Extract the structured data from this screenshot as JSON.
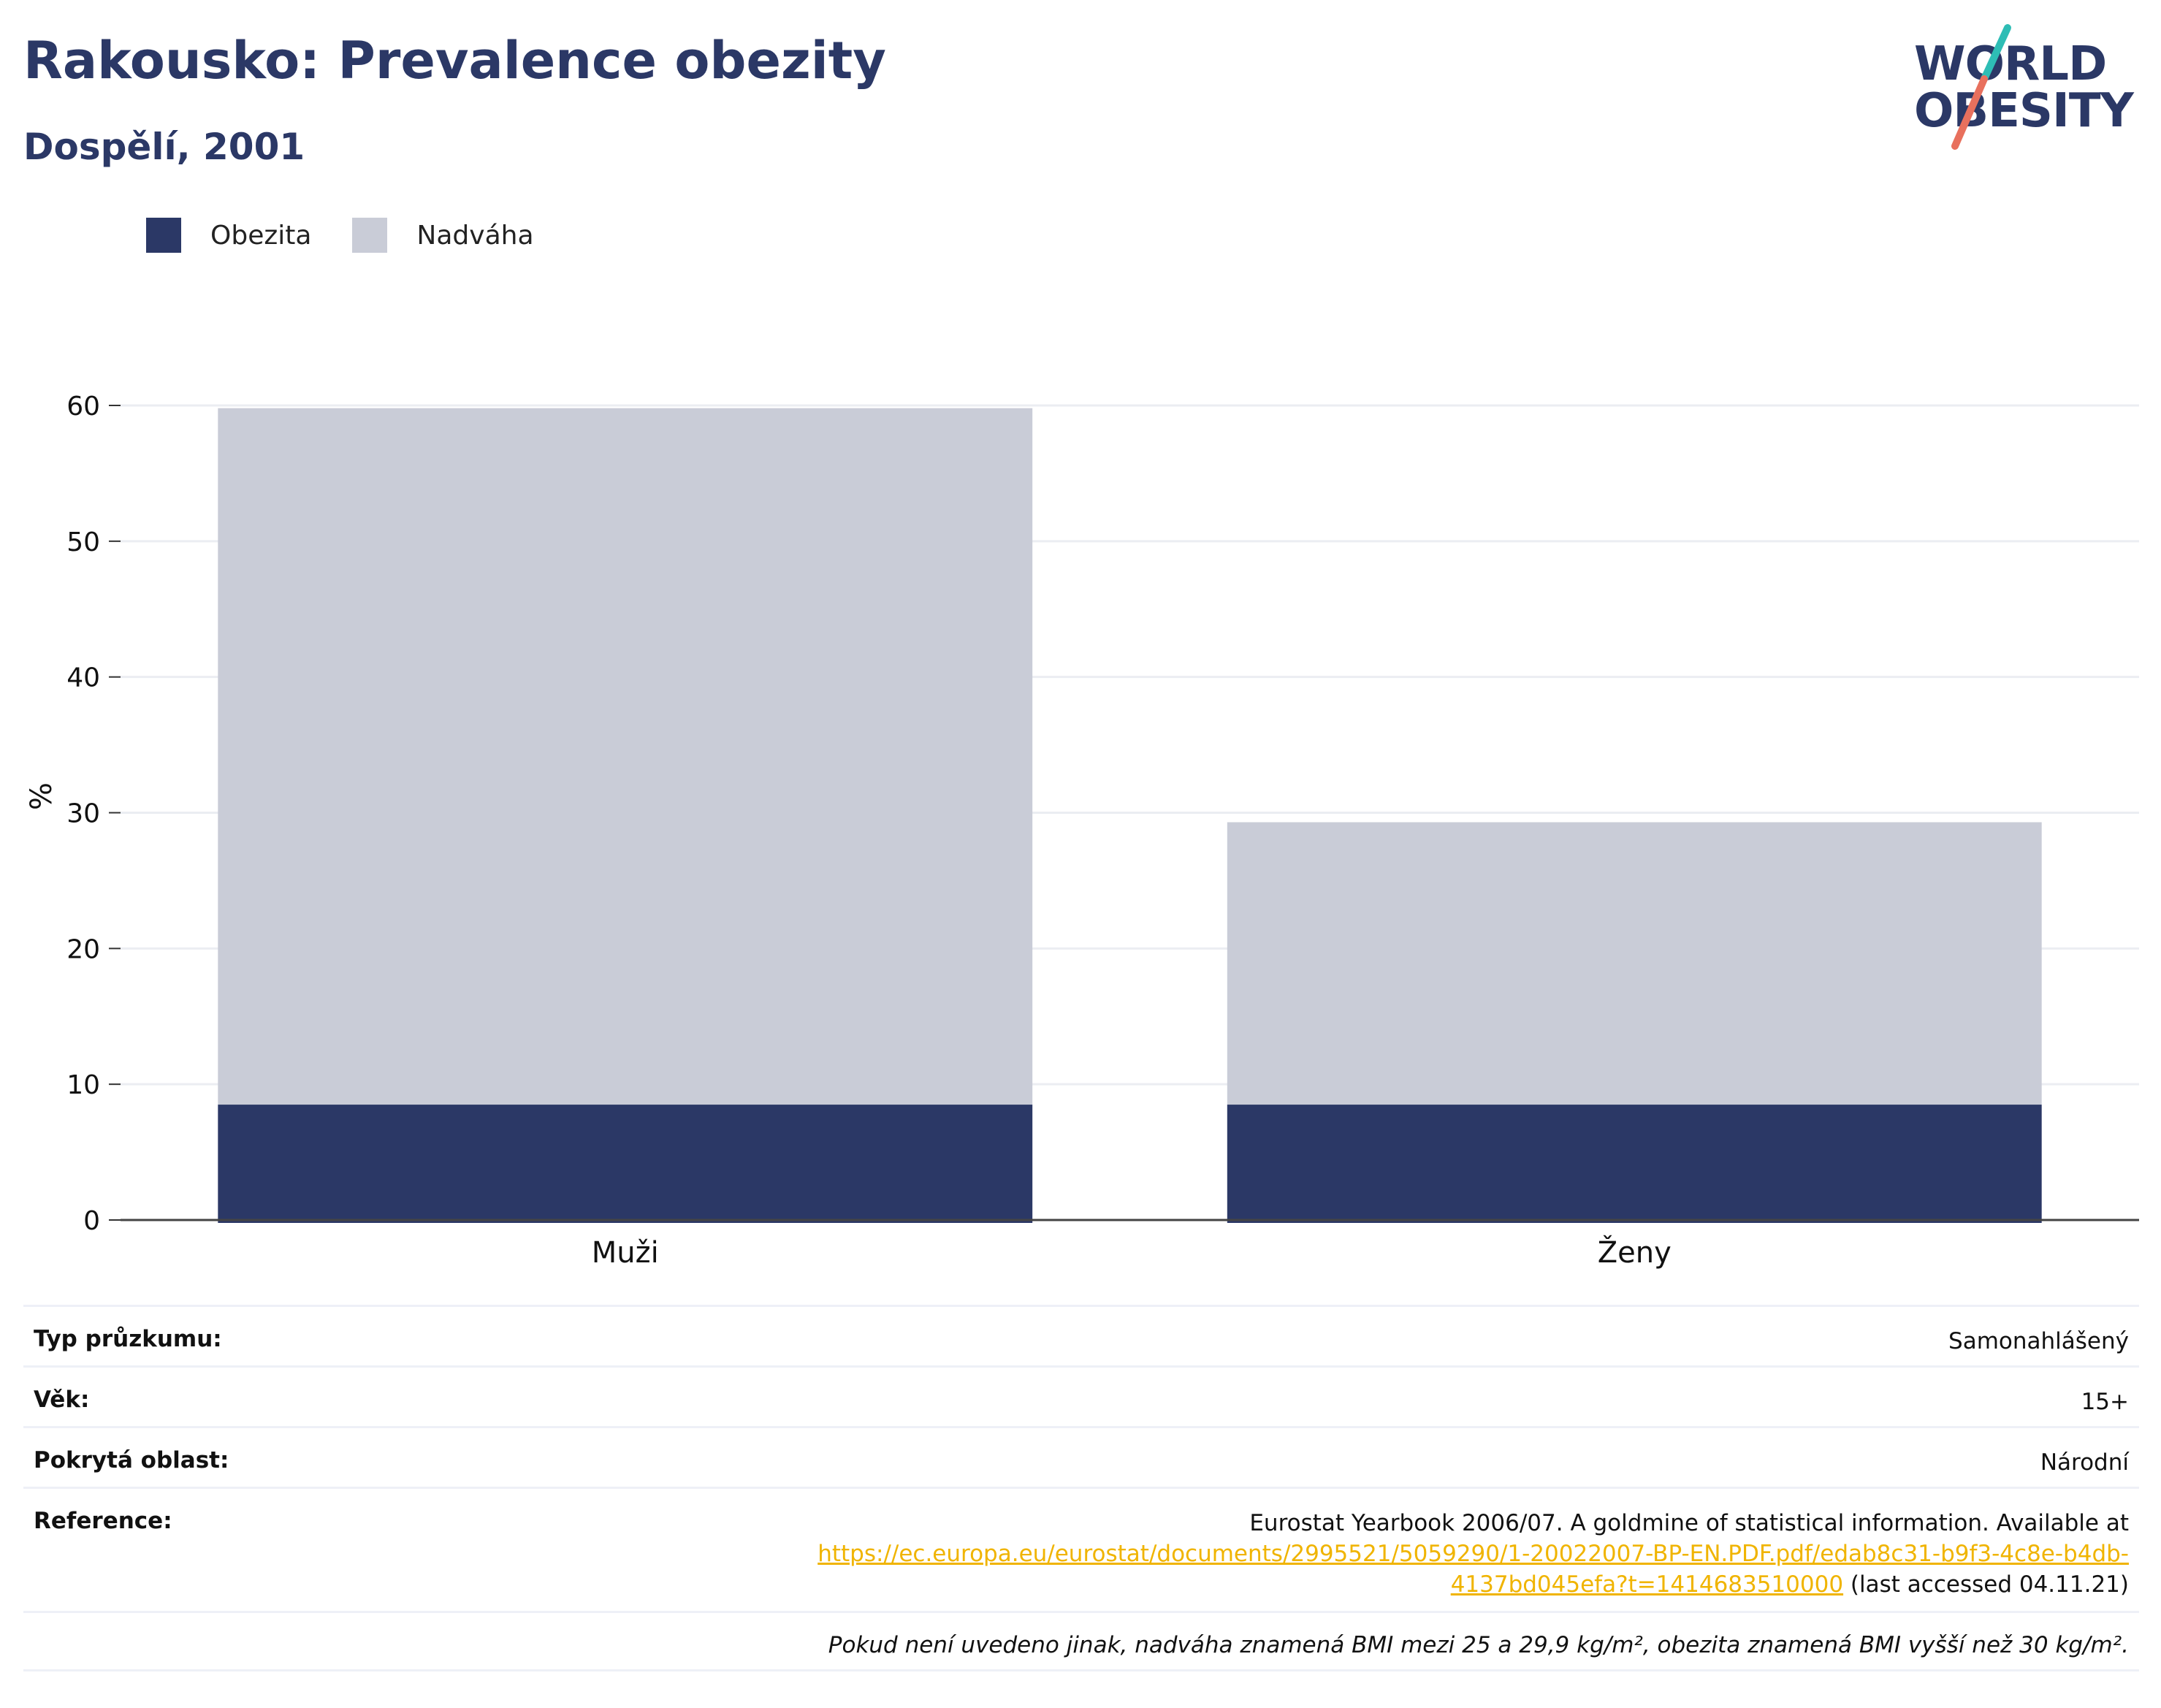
{
  "header": {
    "title": "Rakousko: Prevalence obezity",
    "subtitle": "Dospělí, 2001",
    "logo_line1": "WORLD",
    "logo_line2": "OBESITY"
  },
  "colors": {
    "obesity": "#2b3866",
    "overweight": "#c9ccd7",
    "title": "#2b3866",
    "link": "#f0b400",
    "grid": "#ebedf2",
    "logo_slash_top": "#2ebdb5",
    "logo_slash_bottom": "#e8705d"
  },
  "chart_data": {
    "type": "bar",
    "stacked": true,
    "categories": [
      "Muži",
      "Ženy"
    ],
    "series": [
      {
        "name": "Obezita",
        "values": [
          8.5,
          8.5
        ]
      },
      {
        "name": "Nadváha",
        "values": [
          51.3,
          20.8
        ]
      }
    ],
    "title": "Rakousko: Prevalence obezity",
    "subtitle": "Dospělí, 2001",
    "ylabel": "%",
    "ylim": [
      0,
      60
    ],
    "yticks": [
      0,
      10,
      20,
      30,
      40,
      50,
      60
    ],
    "grid": true,
    "legend_position": "top-left"
  },
  "info": {
    "survey_type_label": "Typ průzkumu:",
    "survey_type_value": "Samonahlášený",
    "age_label": "Věk:",
    "age_value": "15+",
    "area_label": "Pokrytá oblast:",
    "area_value": "Národní",
    "reference_label": "Reference:",
    "reference_text": "Eurostat Yearbook 2006/07. A goldmine of statistical information. Available at",
    "reference_link_line1": "https://ec.europa.eu/eurostat/documents/2995521/5059290/1-20022007-BP-EN.PDF.pdf/edab8c31-b9f3-4c8e-b4db-",
    "reference_link_line2": "4137bd045efa?t=1414683510000",
    "reference_accessed": " (last accessed 04.11.21)",
    "note": "Pokud není uvedeno jinak, nadváha znamená BMI mezi 25 a 29,9 kg/m², obezita znamená BMI vyšší než 30 kg/m²."
  }
}
